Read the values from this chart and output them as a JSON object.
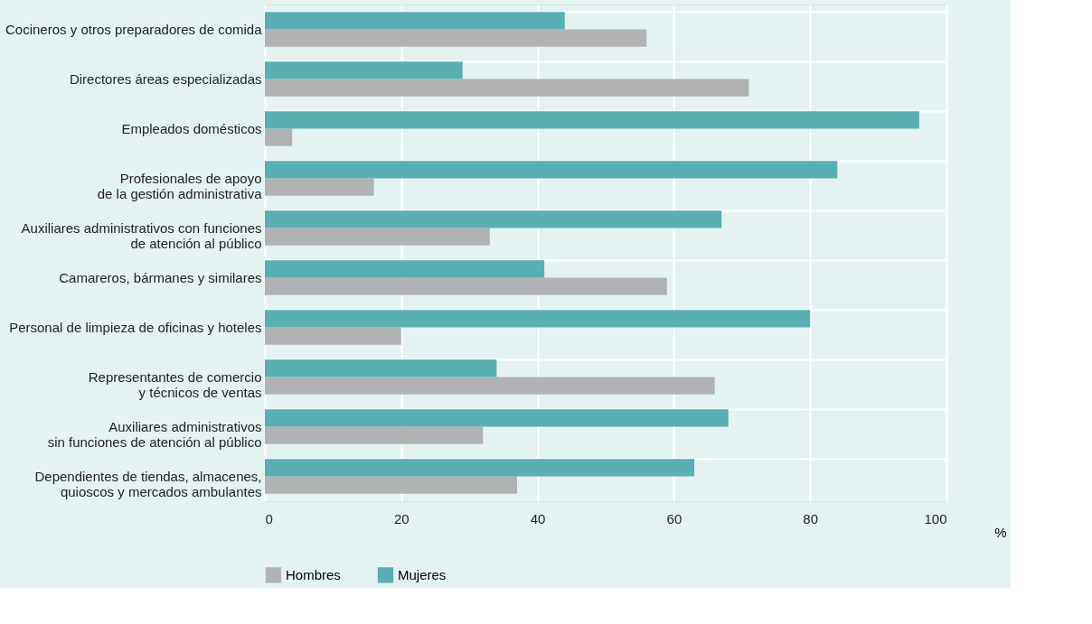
{
  "chart_data": {
    "type": "bar",
    "orientation": "horizontal",
    "xlabel": "%",
    "categories": [
      "Cocineros y otros preparadores de comida",
      "Directores áreas especializadas",
      "Empleados domésticos",
      "Profesionales de apoyo\nde la gestión administrativa",
      "Auxiliares administrativos con funciones\nde atención al público",
      "Camareros, bármanes y similares",
      "Personal de limpieza de oficinas y hoteles",
      "Representantes de comercio\ny técnicos de ventas",
      "Auxiliares administrativos\nsin funciones de atención al público",
      "Dependientes de tiendas, almacenes,\nquioscos y mercados ambulantes"
    ],
    "series": [
      {
        "name": "Hombres",
        "color": "#b1b2b4",
        "values": [
          56,
          71,
          4,
          16,
          33,
          59,
          20,
          66,
          32,
          37
        ]
      },
      {
        "name": "Mujeres",
        "color": "#5aafb2",
        "values": [
          44,
          29,
          96,
          84,
          67,
          41,
          80,
          34,
          68,
          63
        ]
      }
    ],
    "xlim": [
      0,
      100
    ],
    "xticks": [
      0,
      20,
      40,
      60,
      80,
      100
    ],
    "grid": true,
    "legend": "bottom"
  }
}
